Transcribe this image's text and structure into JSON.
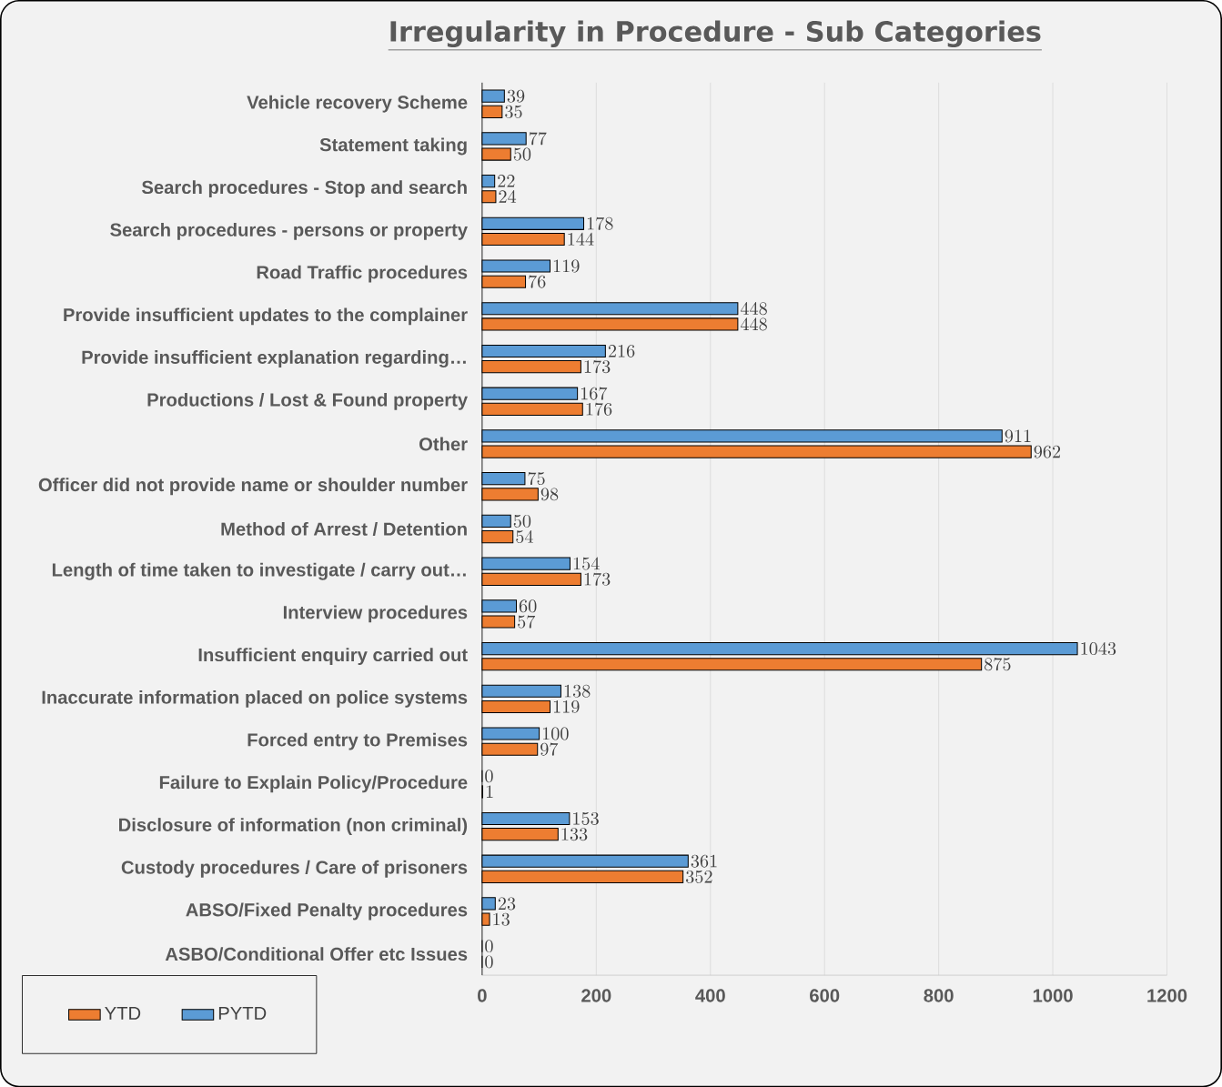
{
  "chart_data": {
    "type": "bar",
    "orientation": "horizontal",
    "title": "Irregularity in Procedure - Sub Categories",
    "categories": [
      "Vehicle recovery Scheme",
      "Statement taking",
      "Search procedures - Stop and search",
      "Search procedures - persons or property",
      "Road Traffic procedures",
      "Provide insufficient updates to the complainer",
      "Provide insufficient explanation regarding…",
      "Productions / Lost & Found property",
      "Other",
      "Officer did not provide name or shoulder number",
      "Method of Arrest / Detention",
      "Length of time taken to investigate / carry out…",
      "Interview procedures",
      "Insufficient enquiry carried out",
      "Inaccurate information placed on police systems",
      "Forced entry to Premises",
      "Failure to Explain Policy/Procedure",
      "Disclosure of information (non criminal)",
      "Custody procedures / Care of prisoners",
      "ABSO/Fixed Penalty procedures",
      "ASBO/Conditional Offer etc Issues"
    ],
    "series": [
      {
        "name": "YTD",
        "color": "#ed7d31",
        "values": [
          35,
          50,
          24,
          144,
          76,
          448,
          173,
          176,
          962,
          98,
          54,
          173,
          57,
          875,
          119,
          97,
          1,
          133,
          352,
          13,
          0
        ]
      },
      {
        "name": "PYTD",
        "color": "#5b9bd5",
        "values": [
          39,
          77,
          22,
          178,
          119,
          448,
          216,
          167,
          911,
          75,
          50,
          154,
          60,
          1043,
          138,
          100,
          0,
          153,
          361,
          23,
          0
        ]
      }
    ],
    "xlim": [
      0,
      1200
    ],
    "xticks": [
      0,
      200,
      400,
      600,
      800,
      1000,
      1200
    ],
    "grid": "x",
    "legend": "bottom left",
    "data_labels": true
  }
}
